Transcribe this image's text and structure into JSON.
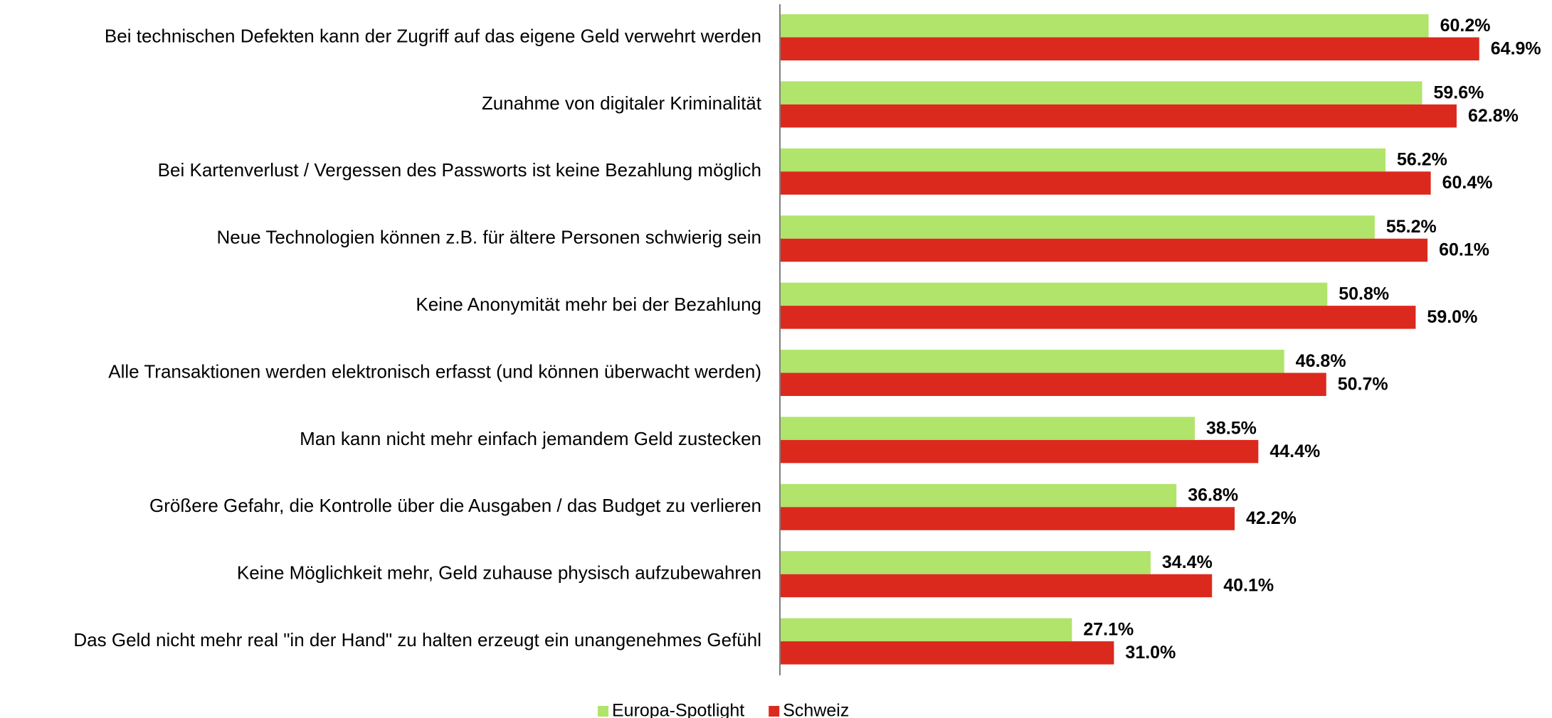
{
  "chart_data": {
    "type": "bar",
    "orientation": "horizontal",
    "categories": [
      "Bei technischen Defekten kann der Zugriff auf das eigene Geld verwehrt werden",
      "Zunahme von digitaler Kriminalität",
      "Bei Kartenverlust / Vergessen des Passworts ist keine Bezahlung möglich",
      "Neue Technologien können z.B. für ältere Personen schwierig sein",
      "Keine Anonymität mehr bei der Bezahlung",
      "Alle Transaktionen werden elektronisch erfasst (und können überwacht werden)",
      "Man kann nicht mehr einfach jemandem Geld zustecken",
      "Größere Gefahr, die Kontrolle über die Ausgaben / das Budget zu verlieren",
      "Keine Möglichkeit mehr, Geld zuhause physisch aufzubewahren",
      "Das Geld nicht mehr real \"in der Hand\" zu halten erzeugt ein unangenehmes Gefühl"
    ],
    "series": [
      {
        "name": "Europa-Spotlight",
        "color": "#b1e46b",
        "values": [
          60.2,
          59.6,
          56.2,
          55.2,
          50.8,
          46.8,
          38.5,
          36.8,
          34.4,
          27.1
        ],
        "value_labels": [
          "60.2%",
          "59.6%",
          "56.2%",
          "55.2%",
          "50.8%",
          "46.8%",
          "38.5%",
          "36.8%",
          "34.4%",
          "27.1%"
        ]
      },
      {
        "name": "Schweiz",
        "color": "#dc291e",
        "values": [
          64.9,
          62.8,
          60.4,
          60.1,
          59.0,
          50.7,
          44.4,
          42.2,
          40.1,
          31.0
        ],
        "value_labels": [
          "64.9%",
          "62.8%",
          "60.4%",
          "60.1%",
          "59.0%",
          "50.7%",
          "44.4%",
          "42.2%",
          "40.1%",
          "31.0%"
        ]
      }
    ],
    "xlim": [
      0,
      70
    ],
    "legend": "bottom"
  }
}
